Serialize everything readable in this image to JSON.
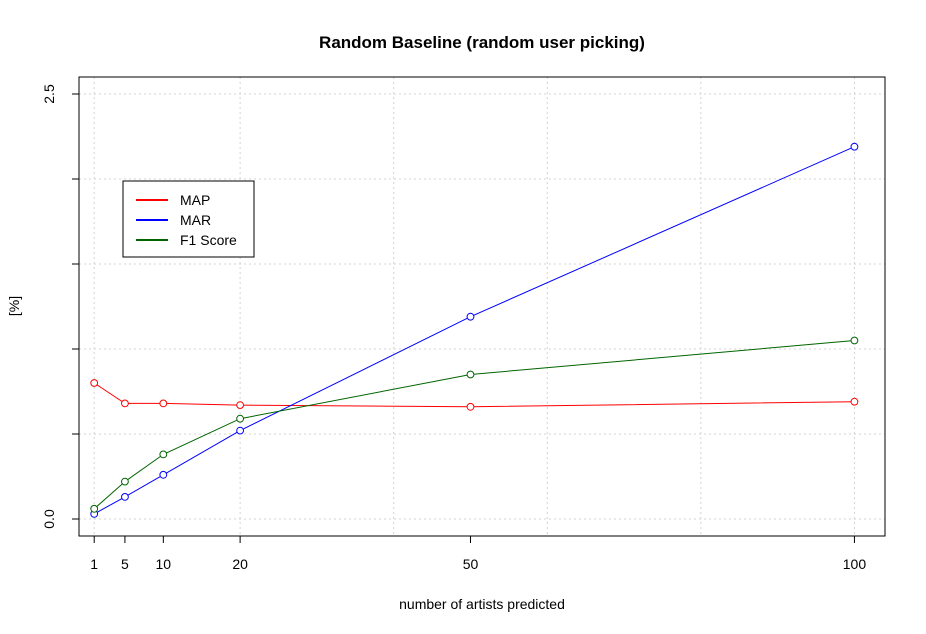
{
  "chart_data": {
    "type": "line",
    "title": "Random Baseline (random user picking)",
    "xlabel": "number of artists predicted",
    "ylabel": "[%]",
    "x": [
      1,
      5,
      10,
      20,
      50,
      100
    ],
    "xticks": [
      1,
      5,
      10,
      20,
      50,
      100
    ],
    "yticks": [
      0.0,
      2.5
    ],
    "yticks_unlabeled": [
      0.5,
      1.0,
      1.5,
      2.0
    ],
    "ytick_labels": [
      "0.0",
      "2.5"
    ],
    "xlim": [
      -0.98,
      103.98
    ],
    "ylim": [
      -0.1,
      2.6
    ],
    "grid": true,
    "legend_position": "top-left",
    "series": [
      {
        "name": "MAP",
        "color": "#ff0000",
        "values": [
          0.8,
          0.68,
          0.68,
          0.67,
          0.66,
          0.69
        ]
      },
      {
        "name": "MAR",
        "color": "#0000ff",
        "values": [
          0.03,
          0.13,
          0.26,
          0.52,
          1.19,
          2.19
        ]
      },
      {
        "name": "F1 Score",
        "color": "#006400",
        "values": [
          0.06,
          0.22,
          0.38,
          0.59,
          0.85,
          1.05
        ]
      }
    ]
  }
}
